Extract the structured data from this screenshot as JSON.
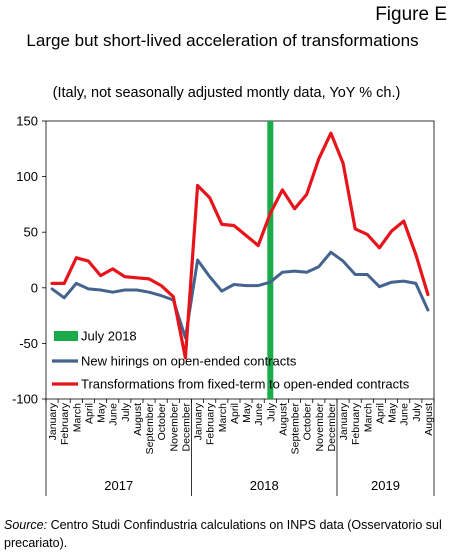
{
  "figure_label": "Figure E",
  "title": "Large but short-lived acceleration of transformations",
  "subtitle": "(Italy, not seasonally adjusted montly data, YoY % ch.)",
  "source_label": "Source:",
  "source_text": " Centro Studi Confindustria calculations on INPS data (Osservatorio sul precariato).",
  "chart_data": {
    "type": "line",
    "categories": [
      "January",
      "February",
      "March",
      "April",
      "May",
      "June",
      "July",
      "August",
      "September",
      "October",
      "November",
      "December",
      "January",
      "February",
      "March",
      "April",
      "May",
      "June",
      "July",
      "August",
      "September",
      "October",
      "November",
      "December",
      "January",
      "February",
      "March",
      "April",
      "May",
      "June",
      "July",
      "August"
    ],
    "year_groups": [
      {
        "label": "2017",
        "span": 12
      },
      {
        "label": "2018",
        "span": 12
      },
      {
        "label": "2019",
        "span": 8
      }
    ],
    "ylim": [
      -100,
      150
    ],
    "yticks": [
      -100,
      -50,
      0,
      50,
      100,
      150
    ],
    "highlight": {
      "name": "July 2018",
      "index": 18,
      "color": "#1aab4a"
    },
    "series": [
      {
        "name": "New hirings on open-ended contracts",
        "color": "#44638f",
        "values": [
          -1,
          -9,
          4,
          -1,
          -2,
          -4,
          -2,
          -2,
          -4,
          -7,
          -11,
          -45,
          25,
          10,
          -3,
          3,
          2,
          2,
          5,
          14,
          15,
          14,
          19,
          32,
          24,
          12,
          12,
          1,
          5,
          6,
          4,
          -20
        ]
      },
      {
        "name": "Transformations from fixed-term to open-ended contracts",
        "color": "#e8141b",
        "values": [
          4,
          4,
          27,
          24,
          11,
          17,
          10,
          9,
          8,
          2,
          -8,
          -63,
          92,
          81,
          57,
          56,
          47,
          38,
          67,
          88,
          71,
          84,
          116,
          139,
          112,
          53,
          48,
          36,
          51,
          60,
          30,
          -6
        ]
      }
    ],
    "legend": [
      {
        "label": "July 2018",
        "kind": "bar",
        "color": "#1aab4a"
      },
      {
        "label": "New hirings on open-ended contracts",
        "kind": "line",
        "color": "#44638f"
      },
      {
        "label": "Transformations from fixed-term to open-ended contracts",
        "kind": "line",
        "color": "#e8141b"
      }
    ],
    "legend_position": "lower-left",
    "grid": false
  }
}
